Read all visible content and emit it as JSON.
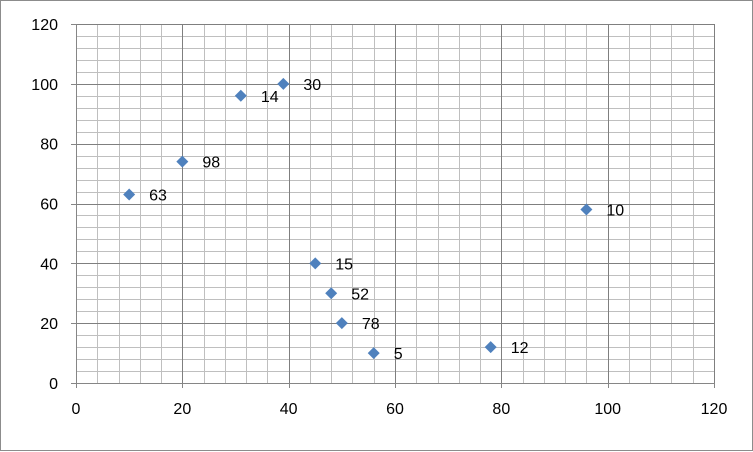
{
  "chart_data": {
    "type": "scatter",
    "title": "",
    "xlabel": "",
    "ylabel": "",
    "xlim": [
      0,
      120
    ],
    "ylim": [
      0,
      120
    ],
    "x_ticks": [
      0,
      20,
      40,
      60,
      80,
      100,
      120
    ],
    "y_ticks": [
      0,
      20,
      40,
      60,
      80,
      100,
      120
    ],
    "grid": {
      "major": true,
      "minor": true
    },
    "legend": "none",
    "marker": "diamond",
    "colors": {
      "marker": "#4f81bd",
      "major_grid": "#7f7f7f",
      "minor_grid": "#bfbfbf",
      "axis": "#868686"
    },
    "points": [
      {
        "x": 10,
        "y": 63,
        "label": "63"
      },
      {
        "x": 20,
        "y": 74,
        "label": "98"
      },
      {
        "x": 31,
        "y": 96,
        "label": "14"
      },
      {
        "x": 39,
        "y": 100,
        "label": "30"
      },
      {
        "x": 45,
        "y": 40,
        "label": "15"
      },
      {
        "x": 48,
        "y": 30,
        "label": "52"
      },
      {
        "x": 50,
        "y": 20,
        "label": "78"
      },
      {
        "x": 56,
        "y": 10,
        "label": "5"
      },
      {
        "x": 78,
        "y": 12,
        "label": "12"
      },
      {
        "x": 96,
        "y": 58,
        "label": "10"
      }
    ]
  }
}
